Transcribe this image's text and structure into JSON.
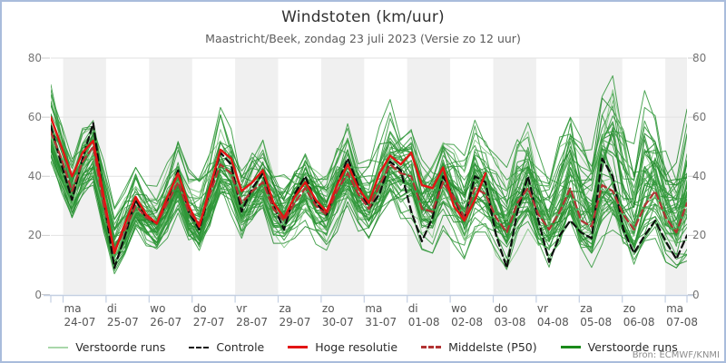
{
  "header": {
    "title": "Windstoten (km/uur)",
    "subtitle": "Maastricht/Beek, zondag 23 juli 2023 (Versie zo 12 uur)"
  },
  "source": "Bron: ECMWF/KNMI",
  "colors": {
    "frame_border": "#a9bcdc",
    "day_band": "#f0f0f0",
    "gridline": "#e2e2e2",
    "axis_line": "#c3cfe2",
    "tick": "#c3cfe2",
    "control": "#0d0d0d",
    "hires": "#e31414",
    "median": "#b23333",
    "ensemble_green": "#2f9638",
    "ensemble_green_light": "#7cc47e",
    "ensemble_green_dark": "#1f8527"
  },
  "chart_data": {
    "type": "line",
    "title": "Windstoten (km/uur)",
    "subtitle": "Maastricht/Beek, zondag 23 juli 2023 (Versie zo 12 uur)",
    "xlabel": "",
    "ylabel": "km/uur",
    "ylim": [
      0,
      80
    ],
    "y_ticks": [
      0,
      20,
      40,
      60,
      80
    ],
    "y_axis_sides": [
      "left",
      "right"
    ],
    "time_step_hours": 6,
    "x_days": [
      {
        "day": "ma",
        "date": "24-07"
      },
      {
        "day": "di",
        "date": "25-07"
      },
      {
        "day": "wo",
        "date": "26-07"
      },
      {
        "day": "do",
        "date": "27-07"
      },
      {
        "day": "vr",
        "date": "28-07"
      },
      {
        "day": "za",
        "date": "29-07"
      },
      {
        "day": "zo",
        "date": "30-07"
      },
      {
        "day": "ma",
        "date": "31-07"
      },
      {
        "day": "di",
        "date": "01-08"
      },
      {
        "day": "wo",
        "date": "02-08"
      },
      {
        "day": "do",
        "date": "03-08"
      },
      {
        "day": "vr",
        "date": "04-08"
      },
      {
        "day": "za",
        "date": "05-08"
      },
      {
        "day": "zo",
        "date": "06-08"
      },
      {
        "day": "ma",
        "date": "07-08"
      }
    ],
    "series": [
      {
        "name": "Controle",
        "style": "dashed",
        "color": "#0d0d0d",
        "width": 2.2,
        "values": [
          57,
          44,
          32,
          46,
          58,
          32,
          9,
          20,
          32,
          26,
          24,
          32,
          42,
          28,
          22,
          35,
          48,
          44,
          28,
          36,
          41,
          30,
          22,
          34,
          40,
          31,
          27,
          37,
          46,
          37,
          29,
          34,
          45,
          42,
          28,
          18,
          26,
          40,
          33,
          25,
          40,
          38,
          20,
          9,
          28,
          40,
          25,
          11,
          20,
          25,
          21,
          19,
          46,
          40,
          22,
          14,
          20,
          25,
          18,
          12,
          20
        ]
      },
      {
        "name": "Hoge resolutie",
        "style": "solid",
        "color": "#e31414",
        "width": 2.4,
        "values": [
          60,
          50,
          40,
          48,
          52,
          33,
          14,
          24,
          33,
          27,
          24,
          33,
          41,
          30,
          23,
          36,
          49,
          46,
          35,
          38,
          42,
          31,
          26,
          33,
          38,
          32,
          28,
          37,
          44,
          36,
          31,
          41,
          47,
          44,
          48,
          37,
          36,
          43,
          30,
          25,
          32,
          41
        ]
      },
      {
        "name": "Middelste (P50)",
        "style": "dashed",
        "color": "#b23333",
        "width": 2.2,
        "values": [
          55,
          46,
          35,
          45,
          50,
          30,
          15,
          22,
          30,
          26,
          24,
          31,
          38,
          28,
          24,
          34,
          44,
          41,
          31,
          35,
          38,
          29,
          25,
          31,
          36,
          30,
          27,
          35,
          41,
          34,
          29,
          37,
          44,
          41,
          40,
          29,
          28,
          38,
          33,
          26,
          36,
          34,
          26,
          21,
          31,
          36,
          27,
          22,
          28,
          36,
          25,
          23,
          37,
          35,
          27,
          22,
          30,
          35,
          26,
          21,
          31
        ]
      }
    ],
    "ensemble": {
      "name": "Verstoorde runs",
      "count": 50,
      "seed": 42,
      "colors": [
        "#2f9638",
        "#7cc47e",
        "#1f8527"
      ],
      "median_ref": "Middelste (P50)",
      "envelope_lo": [
        45,
        35,
        27,
        33,
        38,
        22,
        8,
        14,
        22,
        17,
        15,
        20,
        28,
        18,
        15,
        22,
        33,
        28,
        20,
        24,
        28,
        18,
        16,
        20,
        24,
        18,
        16,
        22,
        28,
        20,
        18,
        24,
        30,
        25,
        24,
        16,
        15,
        22,
        18,
        13,
        20,
        18,
        12,
        8,
        16,
        20,
        13,
        9,
        15,
        20,
        12,
        10,
        18,
        22,
        14,
        10,
        18,
        20,
        12,
        10,
        12
      ],
      "envelope_hi": [
        74,
        60,
        48,
        57,
        62,
        45,
        30,
        35,
        42,
        36,
        36,
        45,
        56,
        42,
        40,
        52,
        64,
        58,
        48,
        52,
        56,
        45,
        42,
        48,
        52,
        46,
        44,
        52,
        60,
        50,
        48,
        56,
        65,
        58,
        60,
        48,
        50,
        58,
        52,
        46,
        58,
        52,
        46,
        42,
        55,
        60,
        50,
        44,
        55,
        62,
        52,
        48,
        66,
        73,
        58,
        50,
        68,
        62,
        55,
        50,
        62
      ]
    },
    "shaded_day_indices": [
      0,
      2,
      4,
      6,
      8,
      10,
      12,
      14
    ],
    "layout_hints": {
      "grid": true,
      "legend_position": "bottom",
      "banded_days": true
    }
  },
  "legend": [
    {
      "label": "Verstoorde runs",
      "color": "#a9d7aa",
      "style": "solid",
      "weight": 2
    },
    {
      "label": "Controle",
      "color": "#111111",
      "style": "dashed",
      "weight": 2
    },
    {
      "label": "Hoge resolutie",
      "color": "#e31414",
      "style": "solid",
      "weight": 3
    },
    {
      "label": "Middelste (P50)",
      "color": "#b23333",
      "style": "dashed",
      "weight": 3
    },
    {
      "label": "Verstoorde runs",
      "color": "#1a8a1a",
      "style": "solid",
      "weight": 3
    }
  ]
}
